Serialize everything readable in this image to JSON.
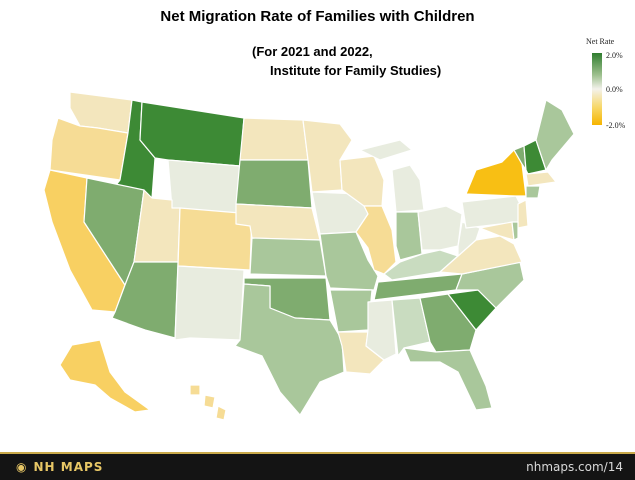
{
  "map": {
    "title": "Net Migration Rate of Families with Children",
    "subtitle": "(For 2021 and 2022,\n     Institute for Family Studies)"
  },
  "legend": {
    "title": "Net Rate",
    "ticks": [
      "2.0%",
      "0.0%",
      "-2.0%"
    ],
    "colors": {
      "high": "#2f7d2f",
      "mid": "#f3f2ec",
      "low": "#f6b400"
    }
  },
  "footer": {
    "brand": "NH MAPS",
    "url": "nhmaps.com/14"
  },
  "palette": {
    "dark_green": "#3d8a35",
    "mid_green": "#7fac6f",
    "light_green": "#a9c79b",
    "pale_green": "#c9dcc0",
    "neutral": "#e8ecdf",
    "pale_yellow": "#f3e6bd",
    "light_yellow": "#f6dc95",
    "mid_yellow": "#f8d062",
    "dark_yellow": "#f8bf14"
  },
  "states": [
    {
      "name": "Washington",
      "tone": "pale_yellow"
    },
    {
      "name": "Oregon",
      "tone": "light_yellow"
    },
    {
      "name": "California",
      "tone": "mid_yellow"
    },
    {
      "name": "Idaho",
      "tone": "dark_green"
    },
    {
      "name": "Nevada",
      "tone": "mid_green"
    },
    {
      "name": "Montana",
      "tone": "dark_green"
    },
    {
      "name": "Wyoming",
      "tone": "neutral"
    },
    {
      "name": "Utah",
      "tone": "pale_yellow"
    },
    {
      "name": "Arizona",
      "tone": "mid_green"
    },
    {
      "name": "Colorado",
      "tone": "light_yellow"
    },
    {
      "name": "New Mexico",
      "tone": "neutral"
    },
    {
      "name": "North Dakota",
      "tone": "pale_yellow"
    },
    {
      "name": "South Dakota",
      "tone": "mid_green"
    },
    {
      "name": "Nebraska",
      "tone": "pale_yellow"
    },
    {
      "name": "Kansas",
      "tone": "light_green"
    },
    {
      "name": "Oklahoma",
      "tone": "mid_green"
    },
    {
      "name": "Texas",
      "tone": "light_green"
    },
    {
      "name": "Minnesota",
      "tone": "pale_yellow"
    },
    {
      "name": "Iowa",
      "tone": "neutral"
    },
    {
      "name": "Missouri",
      "tone": "light_green"
    },
    {
      "name": "Arkansas",
      "tone": "light_green"
    },
    {
      "name": "Louisiana",
      "tone": "pale_yellow"
    },
    {
      "name": "Wisconsin",
      "tone": "pale_yellow"
    },
    {
      "name": "Illinois",
      "tone": "light_yellow"
    },
    {
      "name": "Michigan",
      "tone": "neutral"
    },
    {
      "name": "Indiana",
      "tone": "light_green"
    },
    {
      "name": "Ohio",
      "tone": "neutral"
    },
    {
      "name": "Kentucky",
      "tone": "pale_green"
    },
    {
      "name": "Tennessee",
      "tone": "mid_green"
    },
    {
      "name": "Mississippi",
      "tone": "neutral"
    },
    {
      "name": "Alabama",
      "tone": "pale_green"
    },
    {
      "name": "Georgia",
      "tone": "mid_green"
    },
    {
      "name": "Florida",
      "tone": "light_green"
    },
    {
      "name": "South Carolina",
      "tone": "dark_green"
    },
    {
      "name": "North Carolina",
      "tone": "light_green"
    },
    {
      "name": "Virginia",
      "tone": "pale_yellow"
    },
    {
      "name": "West Virginia",
      "tone": "neutral"
    },
    {
      "name": "Pennsylvania",
      "tone": "neutral"
    },
    {
      "name": "New York",
      "tone": "dark_yellow"
    },
    {
      "name": "Vermont",
      "tone": "mid_green"
    },
    {
      "name": "New Hampshire",
      "tone": "dark_green"
    },
    {
      "name": "Maine",
      "tone": "light_green"
    },
    {
      "name": "Massachusetts",
      "tone": "pale_yellow"
    },
    {
      "name": "Connecticut",
      "tone": "light_green"
    },
    {
      "name": "New Jersey",
      "tone": "pale_yellow"
    },
    {
      "name": "Maryland",
      "tone": "pale_yellow"
    },
    {
      "name": "Delaware",
      "tone": "light_green"
    },
    {
      "name": "Alaska",
      "tone": "mid_yellow"
    },
    {
      "name": "Hawaii",
      "tone": "light_yellow"
    }
  ]
}
